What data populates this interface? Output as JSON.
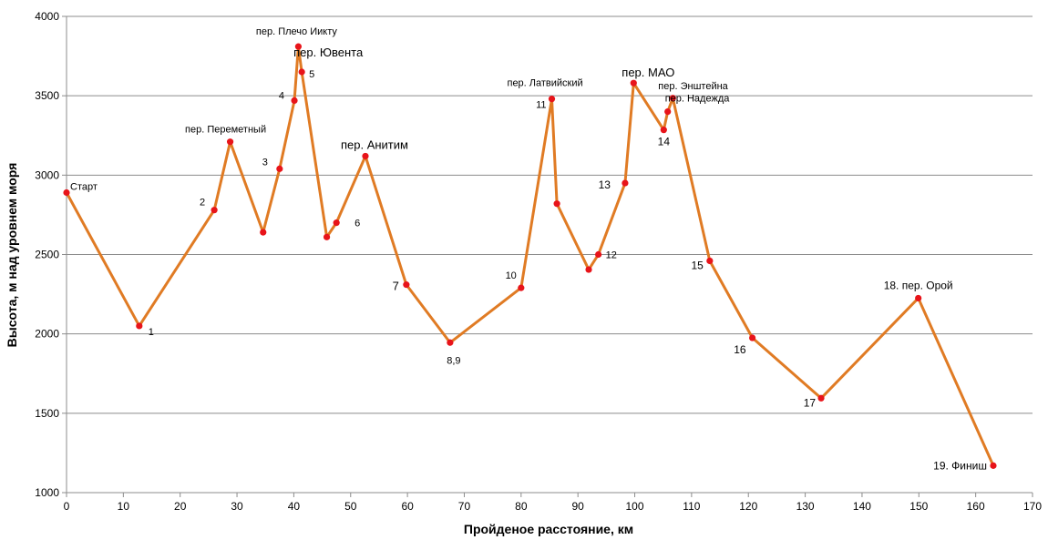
{
  "chart_data": {
    "type": "line",
    "title": "",
    "xlabel": "Пройденое расстояние, км",
    "ylabel": "Высота, м над уровнем моря",
    "xlim": [
      0,
      170
    ],
    "ylim": [
      1000,
      4000
    ],
    "xticks": [
      0,
      10,
      20,
      30,
      40,
      50,
      60,
      70,
      80,
      90,
      100,
      110,
      120,
      130,
      140,
      150,
      160,
      170
    ],
    "yticks": [
      1000,
      1500,
      2000,
      2500,
      3000,
      3500,
      4000
    ],
    "grid": "horizontal",
    "colors": {
      "line": "#e07b24",
      "marker": "#e8141a",
      "grid": "#8c8c8c"
    },
    "series": [
      {
        "points": [
          {
            "x": 0,
            "y": 2890,
            "label": "Старт"
          },
          {
            "x": 12.8,
            "y": 2050,
            "label": "1"
          },
          {
            "x": 26,
            "y": 2780,
            "label": "2"
          },
          {
            "x": 28.8,
            "y": 3210,
            "label": "пер. Переметный"
          },
          {
            "x": 34.6,
            "y": 2640,
            "label": ""
          },
          {
            "x": 37.5,
            "y": 3040,
            "label": "3"
          },
          {
            "x": 40.1,
            "y": 3470,
            "label": "4"
          },
          {
            "x": 40.8,
            "y": 3810,
            "label": "пер. Плечо Иикту"
          },
          {
            "x": 41.4,
            "y": 3650,
            "label": "5"
          },
          {
            "x": 45.8,
            "y": 2610,
            "label": ""
          },
          {
            "x": 47.5,
            "y": 2700,
            "label": "6"
          },
          {
            "x": 52.6,
            "y": 3120,
            "label": "пер. Анитим"
          },
          {
            "x": 59.8,
            "y": 2310,
            "label": "7"
          },
          {
            "x": 67.5,
            "y": 1945,
            "label": "8,9"
          },
          {
            "x": 80,
            "y": 2290,
            "label": "10"
          },
          {
            "x": 85.4,
            "y": 3480,
            "label": "11"
          },
          {
            "x": 86.3,
            "y": 2820,
            "label": ""
          },
          {
            "x": 91.9,
            "y": 2405,
            "label": ""
          },
          {
            "x": 93.6,
            "y": 2500,
            "label": "12"
          },
          {
            "x": 98.3,
            "y": 2950,
            "label": "13"
          },
          {
            "x": 99.8,
            "y": 3580,
            "label": "пер. МАО"
          },
          {
            "x": 105.1,
            "y": 3285,
            "label": "14"
          },
          {
            "x": 105.8,
            "y": 3400,
            "label": ""
          },
          {
            "x": 106.7,
            "y": 3485,
            "label": "пер. Энштейна"
          },
          {
            "x": 113.2,
            "y": 2460,
            "label": "15"
          },
          {
            "x": 120.7,
            "y": 1975,
            "label": "16"
          },
          {
            "x": 132.8,
            "y": 1595,
            "label": "17"
          },
          {
            "x": 149.9,
            "y": 2225,
            "label": "18. пер. Орой"
          },
          {
            "x": 163.1,
            "y": 1170,
            "label": "19. Финиш"
          }
        ]
      }
    ],
    "annotations": [
      {
        "text": "пер. Ювента",
        "x": 41.4,
        "y": 3650
      },
      {
        "text": "пер. Латвийский",
        "x": 85.4,
        "y": 3480
      },
      {
        "text": "пер. Надежда",
        "x": 105.8,
        "y": 3400
      }
    ]
  }
}
